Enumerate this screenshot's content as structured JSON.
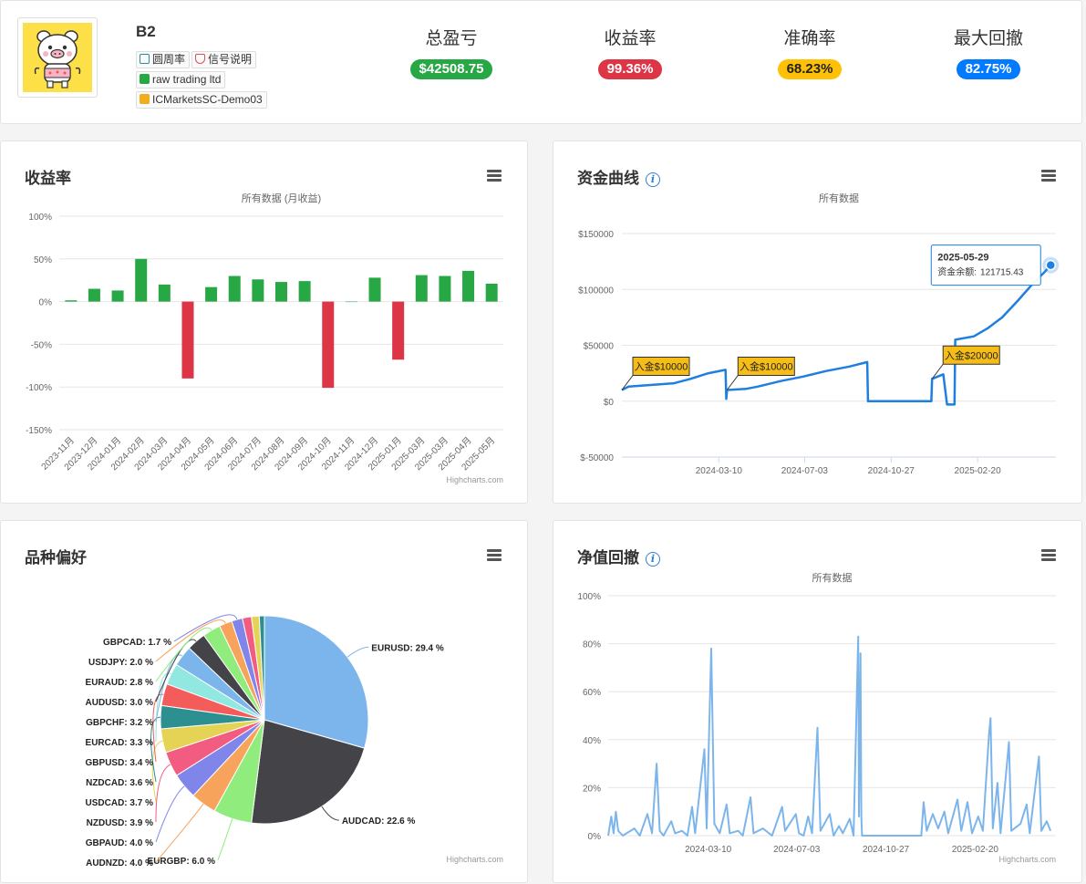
{
  "header": {
    "account_name": "B2",
    "avatar": "pig-avatar",
    "tags": [
      {
        "label": "圆周率",
        "icon": "user-icon",
        "color": "#2a8c9c"
      },
      {
        "label": "信号说明",
        "icon": "shield-icon",
        "color": "#d9534f"
      },
      {
        "label": "raw trading ltd",
        "icon": "broker-icon",
        "color": "#28a745"
      },
      {
        "label": "ICMarketsSC-Demo03",
        "icon": "server-icon",
        "color": "#f0ad1e"
      }
    ],
    "stats": [
      {
        "label": "总盈亏",
        "value": "$42508.75",
        "color": "#28a745"
      },
      {
        "label": "收益率",
        "value": "99.36%",
        "color": "#dc3545"
      },
      {
        "label": "准确率",
        "value": "68.23%",
        "color": "#ffc107"
      },
      {
        "label": "最大回撤",
        "value": "82.75%",
        "color": "#007bff"
      }
    ]
  },
  "panels": {
    "returns": {
      "title": "收益率"
    },
    "equity": {
      "title": "资金曲线"
    },
    "symbols": {
      "title": "品种偏好"
    },
    "drawdown": {
      "title": "净值回撤"
    }
  },
  "chart_data": [
    {
      "id": "monthly-returns",
      "type": "bar",
      "subtitle": "所有数据 (月收益)",
      "credit": "Highcharts.com",
      "categories": [
        "2023-11月",
        "2023-12月",
        "2024-01月",
        "2024-02月",
        "2024-03月",
        "2024-04月",
        "2024-05月",
        "2024-06月",
        "2024-07月",
        "2024-08月",
        "2024-09月",
        "2024-10月",
        "2024-11月",
        "2024-12月",
        "2025-01月",
        "2025-03月",
        "2025-03月",
        "2025-04月",
        "2025-05月"
      ],
      "values": [
        1.5,
        15,
        13,
        50,
        20,
        -90,
        17,
        30,
        26,
        23,
        24,
        -101,
        0,
        28,
        -68,
        31,
        30,
        36,
        21
      ],
      "ylim": [
        -150,
        100
      ],
      "yticks": [
        100,
        50,
        0,
        -50,
        -100,
        -150
      ],
      "ytick_labels": [
        "100%",
        "50%",
        "0%",
        "-50%",
        "-100%",
        "-150%"
      ],
      "positive_color": "#28a745",
      "negative_color": "#dc3545",
      "grid": true
    },
    {
      "id": "equity-curve",
      "type": "line",
      "subtitle": "所有数据",
      "series_color": "#1f7fe0",
      "ylim": [
        -50000,
        150000
      ],
      "yticks": [
        150000,
        100000,
        50000,
        0,
        -50000
      ],
      "ytick_labels": [
        "$150000",
        "$100000",
        "$50000",
        "$0",
        "$-50000"
      ],
      "xlim": [
        "2023-11-01",
        "2025-06-05"
      ],
      "xticks": [
        "2024-03-10",
        "2024-07-03",
        "2024-10-27",
        "2025-02-20"
      ],
      "points": [
        [
          "2023-11-01",
          10000
        ],
        [
          "2023-11-10",
          13000
        ],
        [
          "2023-12-20",
          15000
        ],
        [
          "2024-01-10",
          16000
        ],
        [
          "2024-02-01",
          20000
        ],
        [
          "2024-02-25",
          25000
        ],
        [
          "2024-03-19",
          28000
        ],
        [
          "2024-03-20",
          2000
        ],
        [
          "2024-03-21",
          10000
        ],
        [
          "2024-04-15",
          11000
        ],
        [
          "2024-05-01",
          13000
        ],
        [
          "2024-06-01",
          18000
        ],
        [
          "2024-07-01",
          22000
        ],
        [
          "2024-08-01",
          27000
        ],
        [
          "2024-09-01",
          31000
        ],
        [
          "2024-09-25",
          35000
        ],
        [
          "2024-09-26",
          0
        ],
        [
          "2024-12-20",
          0
        ],
        [
          "2024-12-21",
          20000
        ],
        [
          "2025-01-05",
          24000
        ],
        [
          "2025-01-10",
          -3000
        ],
        [
          "2025-01-20",
          -3000
        ],
        [
          "2025-01-21",
          55000
        ],
        [
          "2025-02-15",
          58000
        ],
        [
          "2025-03-05",
          65000
        ],
        [
          "2025-03-25",
          75000
        ],
        [
          "2025-04-15",
          90000
        ],
        [
          "2025-05-05",
          105000
        ],
        [
          "2025-05-20",
          115000
        ],
        [
          "2025-05-29",
          121715.43
        ]
      ],
      "annotations": [
        {
          "label": "入金$10000",
          "at": "2023-11-01"
        },
        {
          "label": "入金$10000",
          "at": "2024-03-21"
        },
        {
          "label": "入金$20000",
          "at": "2024-12-21"
        }
      ],
      "tooltip": {
        "date": "2025-05-29",
        "label": "资金余额:",
        "value": "121715.43"
      },
      "grid": true
    },
    {
      "id": "symbol-preference",
      "type": "pie",
      "credit": "Highcharts.com",
      "slices": [
        {
          "name": "EURUSD",
          "value": 29.4,
          "label": "EURUSD: 29.4 %",
          "color": "#7cb5ec"
        },
        {
          "name": "AUDCAD",
          "value": 22.6,
          "label": "AUDCAD: 22.6 %",
          "color": "#434348"
        },
        {
          "name": "EURGBP",
          "value": 6.0,
          "label": "EURGBP: 6.0 %",
          "color": "#90ed7d"
        },
        {
          "name": "AUDNZD",
          "value": 4.0,
          "label": "AUDNZD: 4.0 %",
          "color": "#f7a35c"
        },
        {
          "name": "GBPAUD",
          "value": 4.0,
          "label": "GBPAUD: 4.0 %",
          "color": "#8085e9"
        },
        {
          "name": "NZDUSD",
          "value": 3.9,
          "label": "NZDUSD: 3.9 %",
          "color": "#f15c80"
        },
        {
          "name": "USDCAD",
          "value": 3.7,
          "label": "USDCAD: 3.7 %",
          "color": "#e4d354"
        },
        {
          "name": "NZDCAD",
          "value": 3.6,
          "label": "NZDCAD: 3.6 %",
          "color": "#2b908f"
        },
        {
          "name": "GBPUSD",
          "value": 3.4,
          "label": "GBPUSD: 3.4 %",
          "color": "#f45b5b"
        },
        {
          "name": "EURCAD",
          "value": 3.3,
          "label": "EURCAD: 3.3 %",
          "color": "#91e8e1"
        },
        {
          "name": "GBPCHF",
          "value": 3.2,
          "label": "GBPCHF: 3.2 %",
          "color": "#7cb5ec"
        },
        {
          "name": "AUDUSD",
          "value": 3.0,
          "label": "AUDUSD: 3.0 %",
          "color": "#434348"
        },
        {
          "name": "EURAUD",
          "value": 2.8,
          "label": "EURAUD: 2.8 %",
          "color": "#90ed7d"
        },
        {
          "name": "USDJPY",
          "value": 2.0,
          "label": "USDJPY: 2.0 %",
          "color": "#f7a35c"
        },
        {
          "name": "GBPCAD",
          "value": 1.7,
          "label": "GBPCAD: 1.7 %",
          "color": "#8085e9"
        },
        {
          "name": "other-1",
          "value": 1.4,
          "label": "",
          "color": "#f15c80"
        },
        {
          "name": "other-2",
          "value": 1.2,
          "label": "",
          "color": "#e4d354"
        },
        {
          "name": "other-3",
          "value": 0.8,
          "label": "",
          "color": "#2b908f"
        }
      ]
    },
    {
      "id": "drawdown",
      "type": "area",
      "subtitle": "所有数据",
      "credit": "Highcharts.com",
      "series_color": "#7cb5ec",
      "ylim": [
        0,
        100
      ],
      "yticks": [
        100,
        80,
        60,
        40,
        20,
        0
      ],
      "ytick_labels": [
        "100%",
        "80%",
        "60%",
        "40%",
        "20%",
        "0%"
      ],
      "xlim": [
        "2023-11-01",
        "2025-06-05"
      ],
      "xticks": [
        "2024-03-10",
        "2024-07-03",
        "2024-10-27",
        "2025-02-20"
      ],
      "points": [
        [
          "2023-11-01",
          0
        ],
        [
          "2023-11-05",
          8
        ],
        [
          "2023-11-08",
          1
        ],
        [
          "2023-11-11",
          10
        ],
        [
          "2023-11-14",
          2
        ],
        [
          "2023-11-20",
          0
        ],
        [
          "2023-12-05",
          3
        ],
        [
          "2023-12-12",
          0
        ],
        [
          "2023-12-22",
          9
        ],
        [
          "2023-12-28",
          1
        ],
        [
          "2024-01-03",
          30
        ],
        [
          "2024-01-07",
          2
        ],
        [
          "2024-01-12",
          0
        ],
        [
          "2024-01-22",
          6
        ],
        [
          "2024-01-27",
          1
        ],
        [
          "2024-02-05",
          2
        ],
        [
          "2024-02-12",
          0
        ],
        [
          "2024-02-18",
          12
        ],
        [
          "2024-02-22",
          1
        ],
        [
          "2024-03-05",
          36
        ],
        [
          "2024-03-08",
          3
        ],
        [
          "2024-03-14",
          78
        ],
        [
          "2024-03-18",
          5
        ],
        [
          "2024-03-25",
          1
        ],
        [
          "2024-04-03",
          13
        ],
        [
          "2024-04-07",
          1
        ],
        [
          "2024-04-18",
          2
        ],
        [
          "2024-04-24",
          0
        ],
        [
          "2024-05-04",
          16
        ],
        [
          "2024-05-08",
          1
        ],
        [
          "2024-05-20",
          3
        ],
        [
          "2024-06-01",
          0
        ],
        [
          "2024-06-14",
          12
        ],
        [
          "2024-06-18",
          2
        ],
        [
          "2024-07-02",
          9
        ],
        [
          "2024-07-06",
          1
        ],
        [
          "2024-07-12",
          0
        ],
        [
          "2024-07-18",
          8
        ],
        [
          "2024-07-23",
          1
        ],
        [
          "2024-07-30",
          45
        ],
        [
          "2024-08-03",
          2
        ],
        [
          "2024-08-15",
          9
        ],
        [
          "2024-08-20",
          0
        ],
        [
          "2024-08-27",
          4
        ],
        [
          "2024-09-01",
          1
        ],
        [
          "2024-09-10",
          7
        ],
        [
          "2024-09-15",
          0
        ],
        [
          "2024-09-21",
          83
        ],
        [
          "2024-09-22",
          8
        ],
        [
          "2024-09-24",
          76
        ],
        [
          "2024-09-25",
          8
        ],
        [
          "2024-09-26",
          0
        ],
        [
          "2024-12-12",
          0
        ],
        [
          "2024-12-15",
          14
        ],
        [
          "2024-12-19",
          2
        ],
        [
          "2024-12-27",
          9
        ],
        [
          "2025-01-03",
          3
        ],
        [
          "2025-01-11",
          10
        ],
        [
          "2025-01-16",
          1
        ],
        [
          "2025-01-28",
          15
        ],
        [
          "2025-02-02",
          2
        ],
        [
          "2025-02-10",
          14
        ],
        [
          "2025-02-16",
          1
        ],
        [
          "2025-02-24",
          8
        ],
        [
          "2025-03-02",
          2
        ],
        [
          "2025-03-10",
          42
        ],
        [
          "2025-03-12",
          49
        ],
        [
          "2025-03-15",
          3
        ],
        [
          "2025-03-21",
          22
        ],
        [
          "2025-03-25",
          1
        ],
        [
          "2025-04-05",
          39
        ],
        [
          "2025-04-08",
          2
        ],
        [
          "2025-04-20",
          5
        ],
        [
          "2025-04-28",
          13
        ],
        [
          "2025-05-02",
          1
        ],
        [
          "2025-05-14",
          33
        ],
        [
          "2025-05-17",
          2
        ],
        [
          "2025-05-24",
          6
        ],
        [
          "2025-05-29",
          2
        ]
      ],
      "grid": true
    }
  ]
}
